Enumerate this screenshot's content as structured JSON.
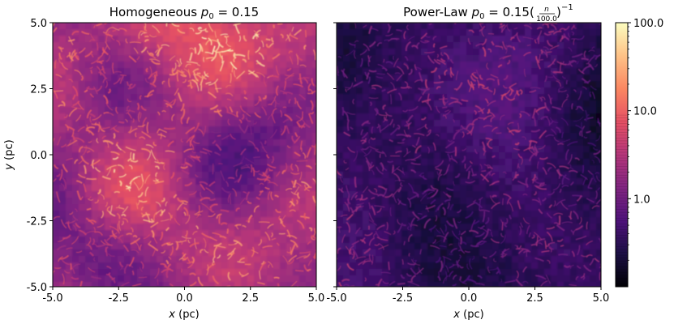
{
  "chart_data": [
    {
      "type": "heatmap",
      "title": "Homogeneous p0 = 0.15",
      "title_parts": {
        "prefix": "Homogeneous ",
        "sym": "p",
        "sub": "0",
        "rest": " = 0.15"
      },
      "xlabel": "x (pc)",
      "ylabel": "y (pc)",
      "xlim": [
        -5.0,
        5.0
      ],
      "ylim": [
        -5.0,
        5.0
      ],
      "xticks": [
        "-5.0",
        "-2.5",
        "0.0",
        "2.5",
        "5.0"
      ],
      "yticks": [
        "-5.0",
        "-2.5",
        "0.0",
        "2.5",
        "5.0"
      ],
      "field_intensity": 0.62,
      "field_contrast": 1.0
    },
    {
      "type": "heatmap",
      "title": "Power-Law p0 = 0.15(n/100.0)^-1",
      "title_parts": {
        "prefix": "Power-Law ",
        "sym": "p",
        "sub": "0",
        "rest": " = 0.15(",
        "frac_num": "n",
        "frac_den": "100.0",
        "close": ")",
        "exp": "−1"
      },
      "xlabel": "x (pc)",
      "xlim": [
        -5.0,
        5.0
      ],
      "ylim": [
        -5.0,
        5.0
      ],
      "xticks": [
        "-5.0",
        "-2.5",
        "0.0",
        "2.5",
        "5.0"
      ],
      "field_intensity": 0.33,
      "field_contrast": 0.55
    }
  ],
  "colorbar": {
    "scale": "log",
    "min": 0.1,
    "max": 100.0,
    "ticks": [
      {
        "value": 100.0,
        "label": "100.0"
      },
      {
        "value": 10.0,
        "label": "10.0"
      },
      {
        "value": 1.0,
        "label": "1.0"
      }
    ],
    "colormap": "magma",
    "colors": [
      "#000004",
      "#1c1044",
      "#4f127b",
      "#812581",
      "#b5367a",
      "#e55064",
      "#fb8761",
      "#fec287",
      "#fcfdbf"
    ]
  }
}
